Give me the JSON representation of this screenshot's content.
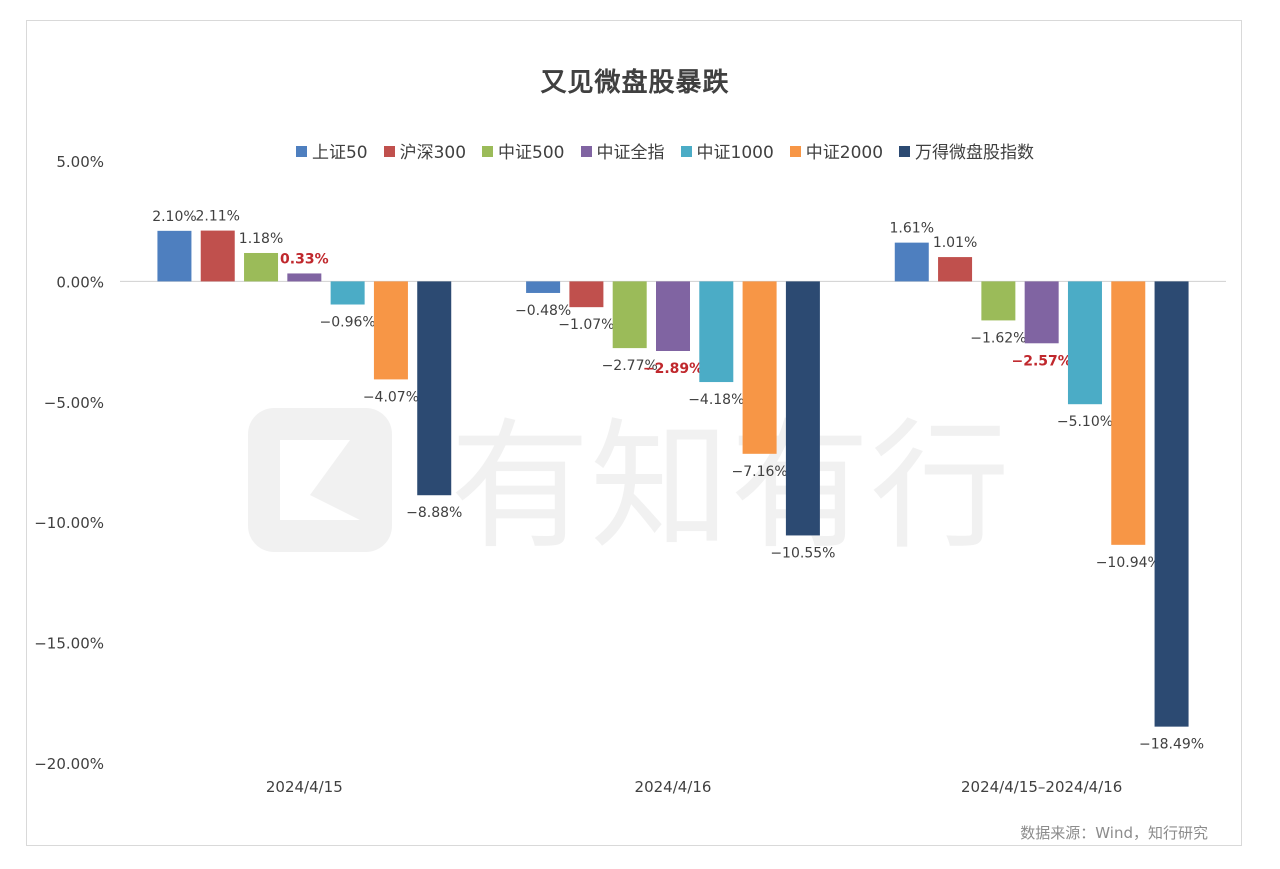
{
  "watermark_text": "有知有行",
  "source": "数据来源：Wind，知行研究",
  "chart_data": {
    "type": "bar",
    "title": "又见微盘股暴跌",
    "categories": [
      "2024/4/15",
      "2024/4/16",
      "2024/4/15–2024/4/16"
    ],
    "ylim": [
      -20,
      5
    ],
    "yticks": [
      "5.00%",
      "0.00%",
      "−5.00%",
      "−10.00%",
      "−15.00%",
      "−20.00%"
    ],
    "ytick_values": [
      5,
      0,
      -5,
      -10,
      -15,
      -20
    ],
    "legend_position": "top",
    "grid": false,
    "highlight_color": "#c0282d",
    "series": [
      {
        "name": "上证50",
        "color": "#4e7fbf",
        "values": [
          2.1,
          -0.48,
          1.61
        ],
        "labels": [
          "2.10%",
          "−0.48%",
          "1.61%"
        ],
        "highlight": [
          false,
          false,
          false
        ]
      },
      {
        "name": "沪深300",
        "color": "#c0504d",
        "values": [
          2.11,
          -1.07,
          1.01
        ],
        "labels": [
          "2.11%",
          "−1.07%",
          "1.01%"
        ],
        "highlight": [
          false,
          false,
          false
        ]
      },
      {
        "name": "中证500",
        "color": "#9bbb59",
        "values": [
          1.18,
          -2.77,
          -1.62
        ],
        "labels": [
          "1.18%",
          "−2.77%",
          "−1.62%"
        ],
        "highlight": [
          false,
          false,
          false
        ]
      },
      {
        "name": "中证全指",
        "color": "#8064a2",
        "values": [
          0.33,
          -2.89,
          -2.57
        ],
        "labels": [
          "0.33%",
          "−2.89%",
          "−2.57%"
        ],
        "highlight": [
          true,
          true,
          true
        ]
      },
      {
        "name": "中证1000",
        "color": "#4bacc6",
        "values": [
          -0.96,
          -4.18,
          -5.1
        ],
        "labels": [
          "−0.96%",
          "−4.18%",
          "−5.10%"
        ],
        "highlight": [
          false,
          false,
          false
        ]
      },
      {
        "name": "中证2000",
        "color": "#f79646",
        "values": [
          -4.07,
          -7.16,
          -10.94
        ],
        "labels": [
          "−4.07%",
          "−7.16%",
          "−10.94%"
        ],
        "highlight": [
          false,
          false,
          false
        ]
      },
      {
        "name": "万得微盘股指数",
        "color": "#2c4a72",
        "values": [
          -8.88,
          -10.55,
          -18.49
        ],
        "labels": [
          "−8.88%",
          "−10.55%",
          "−18.49%"
        ],
        "highlight": [
          false,
          false,
          false
        ]
      }
    ]
  }
}
